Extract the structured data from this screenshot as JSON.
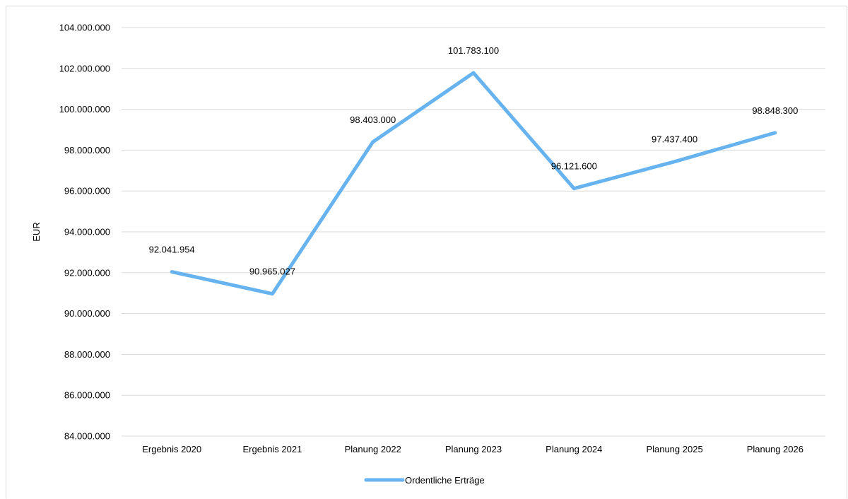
{
  "chart_data": {
    "type": "line",
    "categories": [
      "Ergebnis 2020",
      "Ergebnis 2021",
      "Planung 2022",
      "Planung 2023",
      "Planung 2024",
      "Planung 2025",
      "Planung 2026"
    ],
    "series": [
      {
        "name": "Ordentliche Erträge",
        "values": [
          92041954,
          90965027,
          98403000,
          101783100,
          96121600,
          97437400,
          98848300
        ],
        "labels": [
          "92.041.954",
          "90.965.027",
          "98.403.000",
          "101.783.100",
          "96.121.600",
          "97.437.400",
          "98.848.300"
        ],
        "color": "#66b3f0"
      }
    ],
    "ylabel": "EUR",
    "ylim": [
      84000000,
      104000000
    ],
    "yticks": [
      84000000,
      86000000,
      88000000,
      90000000,
      92000000,
      94000000,
      96000000,
      98000000,
      100000000,
      102000000,
      104000000
    ],
    "ytick_labels": [
      "84.000.000",
      "86.000.000",
      "88.000.000",
      "90.000.000",
      "92.000.000",
      "94.000.000",
      "96.000.000",
      "98.000.000",
      "100.000.000",
      "102.000.000",
      "104.000.000"
    ],
    "grid": true,
    "legend": "bottom"
  }
}
